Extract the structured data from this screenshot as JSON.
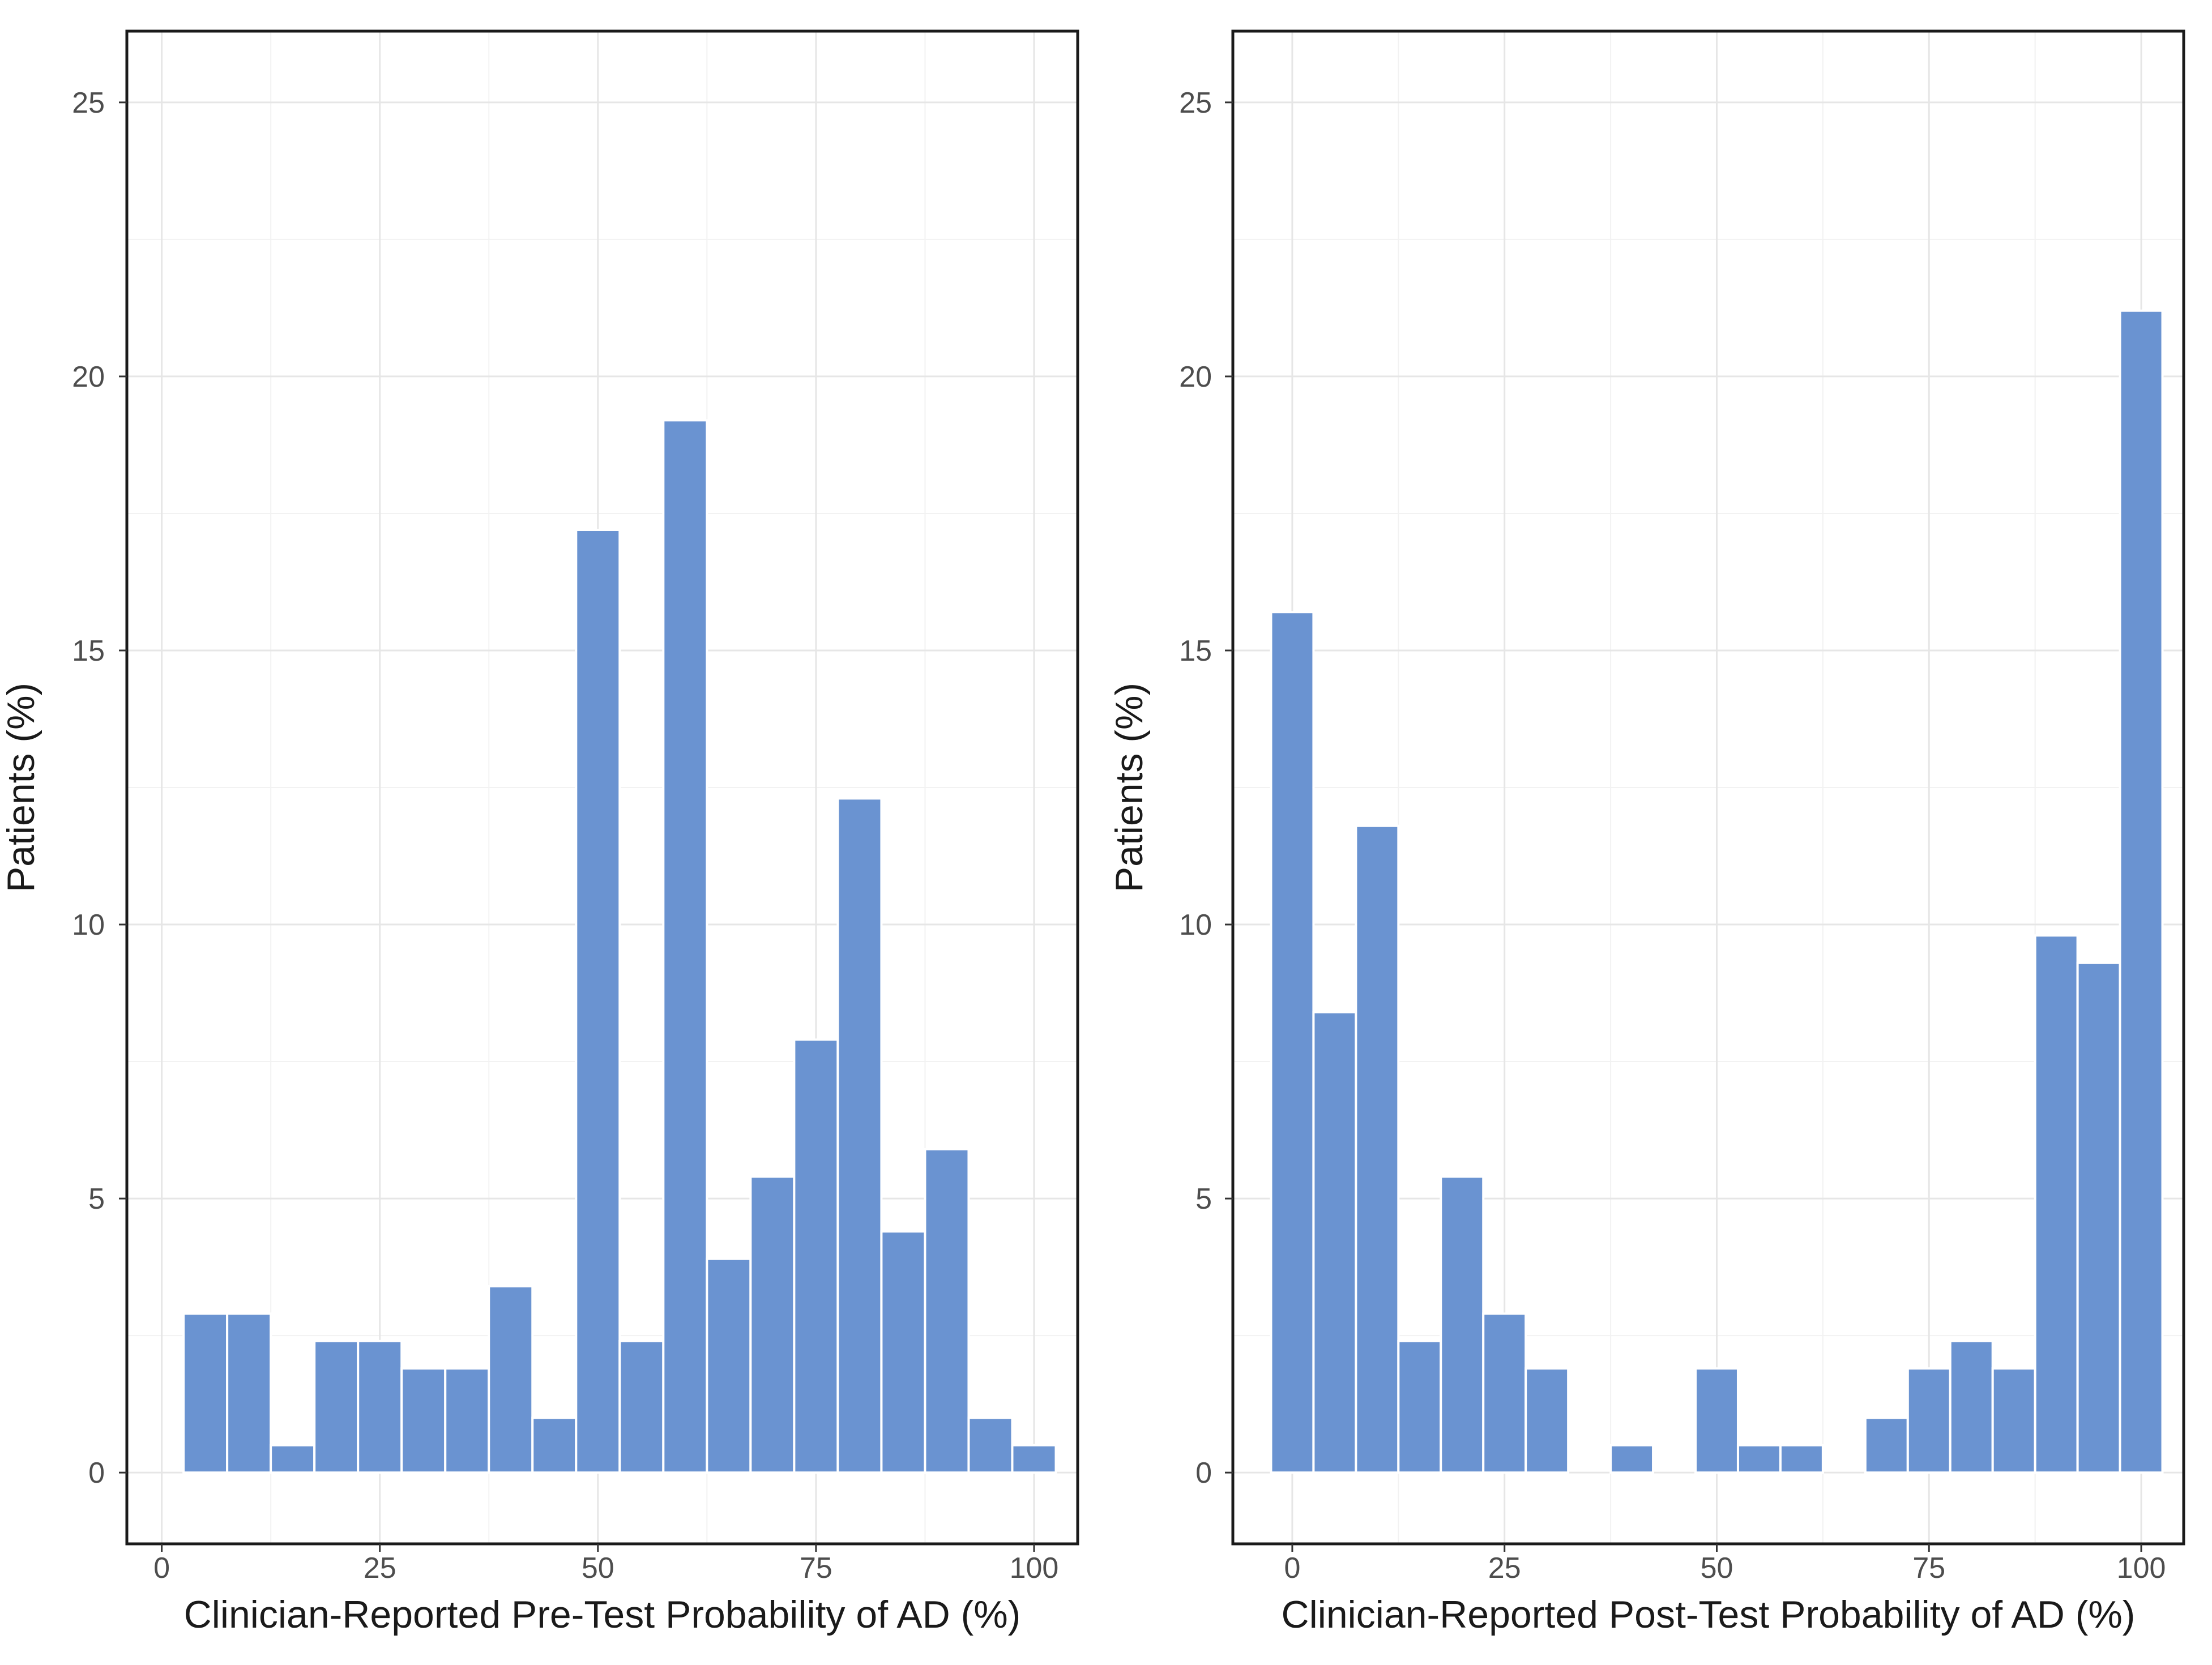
{
  "chart_data": [
    {
      "type": "bar",
      "panel": "left",
      "xlabel": "Clinician-Reported Pre-Test Probability of AD (%)",
      "ylabel": "Patients (%)",
      "xlim": [
        -4,
        105
      ],
      "ylim": [
        -1.3,
        26.3
      ],
      "x_ticks": [
        0,
        25,
        50,
        75,
        100
      ],
      "y_ticks": [
        0,
        5,
        10,
        15,
        20,
        25
      ],
      "bin_width": 5,
      "bar_color": "#6a93d1",
      "bins": [
        {
          "center": 5,
          "value": 2.9
        },
        {
          "center": 10,
          "value": 2.9
        },
        {
          "center": 15,
          "value": 0.5
        },
        {
          "center": 20,
          "value": 2.4
        },
        {
          "center": 25,
          "value": 2.4
        },
        {
          "center": 30,
          "value": 1.9
        },
        {
          "center": 35,
          "value": 1.9
        },
        {
          "center": 40,
          "value": 3.4
        },
        {
          "center": 45,
          "value": 1.0
        },
        {
          "center": 50,
          "value": 17.2
        },
        {
          "center": 55,
          "value": 2.4
        },
        {
          "center": 60,
          "value": 19.2
        },
        {
          "center": 65,
          "value": 3.9
        },
        {
          "center": 70,
          "value": 5.4
        },
        {
          "center": 75,
          "value": 7.9
        },
        {
          "center": 80,
          "value": 12.3
        },
        {
          "center": 85,
          "value": 4.4
        },
        {
          "center": 90,
          "value": 5.9
        },
        {
          "center": 95,
          "value": 1.0
        },
        {
          "center": 100,
          "value": 0.5
        }
      ]
    },
    {
      "type": "bar",
      "panel": "right",
      "xlabel": "Clinician-Reported Post-Test Probability of AD (%)",
      "ylabel": "Patients (%)",
      "xlim": [
        -7,
        105
      ],
      "ylim": [
        -1.3,
        26.3
      ],
      "x_ticks": [
        0,
        25,
        50,
        75,
        100
      ],
      "y_ticks": [
        0,
        5,
        10,
        15,
        20,
        25
      ],
      "bin_width": 5,
      "bar_color": "#6a93d1",
      "bins": [
        {
          "center": 0,
          "value": 15.7
        },
        {
          "center": 5,
          "value": 8.4
        },
        {
          "center": 10,
          "value": 11.8
        },
        {
          "center": 15,
          "value": 2.4
        },
        {
          "center": 20,
          "value": 5.4
        },
        {
          "center": 25,
          "value": 2.9
        },
        {
          "center": 30,
          "value": 1.9
        },
        {
          "center": 35,
          "value": 0
        },
        {
          "center": 40,
          "value": 0.5
        },
        {
          "center": 45,
          "value": 0
        },
        {
          "center": 50,
          "value": 1.9
        },
        {
          "center": 55,
          "value": 0.5
        },
        {
          "center": 60,
          "value": 0.5
        },
        {
          "center": 65,
          "value": 0
        },
        {
          "center": 70,
          "value": 1.0
        },
        {
          "center": 75,
          "value": 1.9
        },
        {
          "center": 80,
          "value": 2.4
        },
        {
          "center": 85,
          "value": 1.9
        },
        {
          "center": 90,
          "value": 9.8
        },
        {
          "center": 95,
          "value": 9.3
        },
        {
          "center": 100,
          "value": 21.2
        }
      ]
    }
  ]
}
